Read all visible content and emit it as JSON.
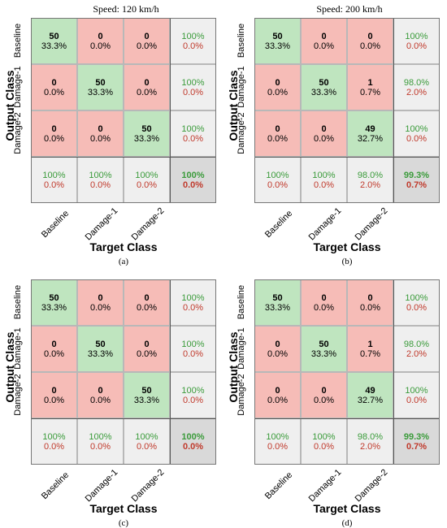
{
  "colors": {
    "correct_bg": "#bfe5bf",
    "wrong_bg": "#f6bcb7",
    "summary_bg": "#efefef",
    "total_bg": "#d9d9d9",
    "green_text": "#3a9b3a",
    "red_text": "#c0392b"
  },
  "chart_data": [
    {
      "type": "heatmap",
      "title": "Speed: 120 km/h",
      "sub_label": "(a)",
      "xlabel": "Target Class",
      "ylabel": "Output Class",
      "classes": [
        "Baseline",
        "Damage-1",
        "Damage-2"
      ],
      "counts": [
        [
          50,
          0,
          0
        ],
        [
          0,
          50,
          0
        ],
        [
          0,
          0,
          50
        ]
      ],
      "percent": [
        "33.3%",
        "0.0%",
        "0.0%",
        "0.0%",
        "33.3%",
        "0.0%",
        "0.0%",
        "0.0%",
        "33.3%"
      ],
      "row_summary": [
        [
          "100%",
          "0.0%"
        ],
        [
          "100%",
          "0.0%"
        ],
        [
          "100%",
          "0.0%"
        ]
      ],
      "col_summary": [
        [
          "100%",
          "0.0%"
        ],
        [
          "100%",
          "0.0%"
        ],
        [
          "100%",
          "0.0%"
        ]
      ],
      "total": [
        "100%",
        "0.0%"
      ]
    },
    {
      "type": "heatmap",
      "title": "Speed: 200 km/h",
      "sub_label": "(b)",
      "xlabel": "Target Class",
      "ylabel": "Output Class",
      "classes": [
        "Baseline",
        "Damage-1",
        "Damage-2"
      ],
      "counts": [
        [
          50,
          0,
          0
        ],
        [
          0,
          50,
          1
        ],
        [
          0,
          0,
          49
        ]
      ],
      "percent": [
        "33.3%",
        "0.0%",
        "0.0%",
        "0.0%",
        "33.3%",
        "0.7%",
        "0.0%",
        "0.0%",
        "32.7%"
      ],
      "row_summary": [
        [
          "100%",
          "0.0%"
        ],
        [
          "98.0%",
          "2.0%"
        ],
        [
          "100%",
          "0.0%"
        ]
      ],
      "col_summary": [
        [
          "100%",
          "0.0%"
        ],
        [
          "100%",
          "0.0%"
        ],
        [
          "98.0%",
          "2.0%"
        ]
      ],
      "total": [
        "99.3%",
        "0.7%"
      ]
    },
    {
      "type": "heatmap",
      "title": "",
      "sub_label": "(c)",
      "xlabel": "Target Class",
      "ylabel": "Output Class",
      "classes": [
        "Baseline",
        "Damage-1",
        "Damage-2"
      ],
      "counts": [
        [
          50,
          0,
          0
        ],
        [
          0,
          50,
          0
        ],
        [
          0,
          0,
          50
        ]
      ],
      "percent": [
        "33.3%",
        "0.0%",
        "0.0%",
        "0.0%",
        "33.3%",
        "0.0%",
        "0.0%",
        "0.0%",
        "33.3%"
      ],
      "row_summary": [
        [
          "100%",
          "0.0%"
        ],
        [
          "100%",
          "0.0%"
        ],
        [
          "100%",
          "0.0%"
        ]
      ],
      "col_summary": [
        [
          "100%",
          "0.0%"
        ],
        [
          "100%",
          "0.0%"
        ],
        [
          "100%",
          "0.0%"
        ]
      ],
      "total": [
        "100%",
        "0.0%"
      ]
    },
    {
      "type": "heatmap",
      "title": "",
      "sub_label": "(d)",
      "xlabel": "Target Class",
      "ylabel": "Output Class",
      "classes": [
        "Baseline",
        "Damage-1",
        "Damage-2"
      ],
      "counts": [
        [
          50,
          0,
          0
        ],
        [
          0,
          50,
          1
        ],
        [
          0,
          0,
          49
        ]
      ],
      "percent": [
        "33.3%",
        "0.0%",
        "0.0%",
        "0.0%",
        "33.3%",
        "0.7%",
        "0.0%",
        "0.0%",
        "32.7%"
      ],
      "row_summary": [
        [
          "100%",
          "0.0%"
        ],
        [
          "98.0%",
          "2.0%"
        ],
        [
          "100%",
          "0.0%"
        ]
      ],
      "col_summary": [
        [
          "100%",
          "0.0%"
        ],
        [
          "100%",
          "0.0%"
        ],
        [
          "98.0%",
          "2.0%"
        ]
      ],
      "total": [
        "99.3%",
        "0.7%"
      ]
    }
  ]
}
